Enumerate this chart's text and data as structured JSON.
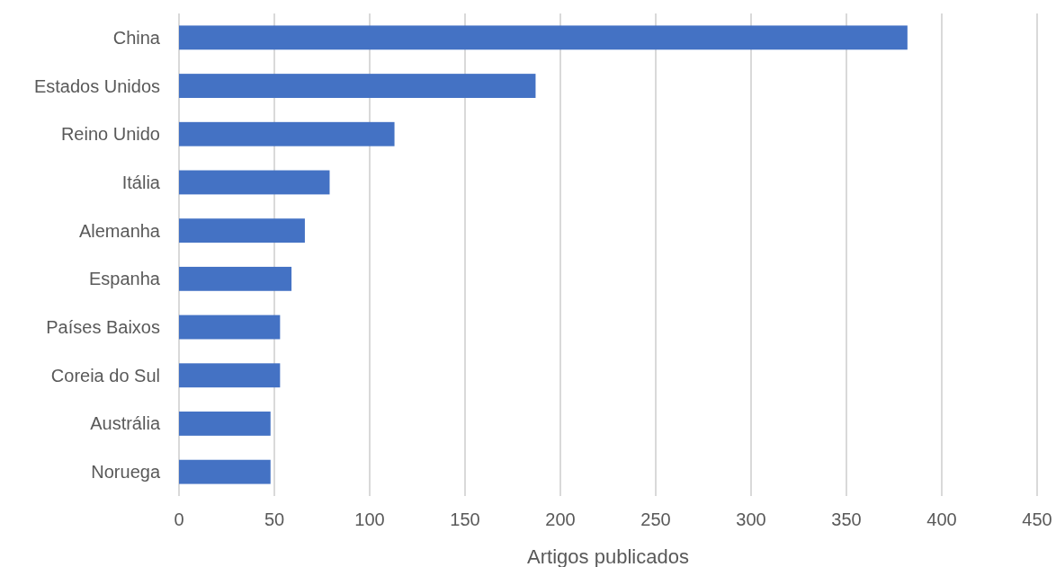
{
  "chart_data": {
    "type": "bar",
    "orientation": "horizontal",
    "xlabel": "Artigos publicados",
    "categories": [
      "China",
      "Estados Unidos",
      "Reino Unido",
      "Itália",
      "Alemanha",
      "Espanha",
      "Países Baixos",
      "Coreia do Sul",
      "Austrália",
      "Noruega"
    ],
    "values": [
      382,
      187,
      113,
      79,
      66,
      59,
      53,
      53,
      48,
      48
    ],
    "color": "#4472c4",
    "xlim": [
      0,
      450
    ],
    "xticks": [
      0,
      50,
      100,
      150,
      200,
      250,
      300,
      350,
      400,
      450
    ],
    "grid": "x"
  }
}
